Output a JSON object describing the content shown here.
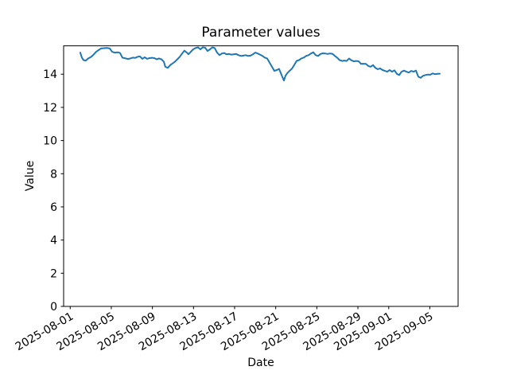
{
  "figure": {
    "background": "#ffffff"
  },
  "chart_data": {
    "type": "line",
    "title": "Parameter values",
    "xlabel": "Date",
    "ylabel": "Value",
    "x_unit": "days since 2025-08-01",
    "xlim": [
      -0.64,
      37.75
    ],
    "ylim": [
      0,
      15.71
    ],
    "grid": false,
    "legend_position": "none",
    "line_color": "#1f77b4",
    "axis_color": "#000000",
    "y_ticks": [
      0,
      2,
      4,
      6,
      8,
      10,
      12,
      14
    ],
    "x_ticks": [
      {
        "pos": 0,
        "label": "2025-08-01"
      },
      {
        "pos": 4,
        "label": "2025-08-05"
      },
      {
        "pos": 8,
        "label": "2025-08-09"
      },
      {
        "pos": 12,
        "label": "2025-08-13"
      },
      {
        "pos": 16,
        "label": "2025-08-17"
      },
      {
        "pos": 20,
        "label": "2025-08-21"
      },
      {
        "pos": 24,
        "label": "2025-08-25"
      },
      {
        "pos": 28,
        "label": "2025-08-29"
      },
      {
        "pos": 31,
        "label": "2025-09-01"
      },
      {
        "pos": 35,
        "label": "2025-09-05"
      }
    ],
    "points": [
      [
        0.98,
        15.3
      ],
      [
        1.14,
        15.0
      ],
      [
        1.29,
        14.85
      ],
      [
        1.52,
        14.82
      ],
      [
        1.76,
        14.95
      ],
      [
        1.99,
        15.03
      ],
      [
        2.22,
        15.15
      ],
      [
        2.53,
        15.36
      ],
      [
        2.76,
        15.45
      ],
      [
        3.0,
        15.55
      ],
      [
        3.3,
        15.57
      ],
      [
        3.61,
        15.58
      ],
      [
        3.85,
        15.55
      ],
      [
        4.08,
        15.35
      ],
      [
        4.31,
        15.3
      ],
      [
        4.62,
        15.32
      ],
      [
        4.85,
        15.28
      ],
      [
        5.08,
        15.0
      ],
      [
        5.39,
        14.95
      ],
      [
        5.63,
        14.92
      ],
      [
        5.86,
        14.95
      ],
      [
        6.09,
        15.0
      ],
      [
        6.32,
        14.98
      ],
      [
        6.56,
        15.05
      ],
      [
        6.79,
        15.07
      ],
      [
        7.02,
        14.93
      ],
      [
        7.25,
        15.02
      ],
      [
        7.48,
        14.93
      ],
      [
        7.72,
        14.97
      ],
      [
        7.95,
        14.99
      ],
      [
        8.18,
        14.97
      ],
      [
        8.41,
        14.9
      ],
      [
        8.64,
        14.95
      ],
      [
        8.88,
        14.9
      ],
      [
        9.11,
        14.75
      ],
      [
        9.26,
        14.45
      ],
      [
        9.5,
        14.38
      ],
      [
        9.73,
        14.55
      ],
      [
        9.96,
        14.65
      ],
      [
        10.19,
        14.75
      ],
      [
        10.43,
        14.9
      ],
      [
        10.66,
        15.05
      ],
      [
        10.89,
        15.25
      ],
      [
        11.12,
        15.42
      ],
      [
        11.35,
        15.3
      ],
      [
        11.51,
        15.2
      ],
      [
        11.74,
        15.35
      ],
      [
        11.97,
        15.5
      ],
      [
        12.21,
        15.58
      ],
      [
        12.44,
        15.62
      ],
      [
        12.67,
        15.5
      ],
      [
        12.9,
        15.62
      ],
      [
        13.13,
        15.6
      ],
      [
        13.37,
        15.4
      ],
      [
        13.6,
        15.5
      ],
      [
        13.83,
        15.62
      ],
      [
        14.06,
        15.58
      ],
      [
        14.29,
        15.3
      ],
      [
        14.53,
        15.15
      ],
      [
        14.76,
        15.25
      ],
      [
        14.99,
        15.28
      ],
      [
        15.22,
        15.2
      ],
      [
        15.46,
        15.22
      ],
      [
        15.69,
        15.18
      ],
      [
        15.92,
        15.2
      ],
      [
        16.15,
        15.22
      ],
      [
        16.38,
        15.15
      ],
      [
        16.62,
        15.1
      ],
      [
        16.85,
        15.12
      ],
      [
        17.08,
        15.15
      ],
      [
        17.31,
        15.1
      ],
      [
        17.55,
        15.12
      ],
      [
        17.78,
        15.2
      ],
      [
        18.01,
        15.3
      ],
      [
        18.24,
        15.25
      ],
      [
        18.47,
        15.18
      ],
      [
        18.71,
        15.1
      ],
      [
        18.94,
        15.0
      ],
      [
        19.17,
        14.95
      ],
      [
        19.4,
        14.7
      ],
      [
        19.64,
        14.45
      ],
      [
        19.87,
        14.2
      ],
      [
        20.1,
        14.25
      ],
      [
        20.33,
        14.32
      ],
      [
        20.49,
        14.08
      ],
      [
        20.64,
        13.85
      ],
      [
        20.8,
        13.62
      ],
      [
        20.95,
        13.9
      ],
      [
        21.11,
        14.05
      ],
      [
        21.34,
        14.2
      ],
      [
        21.57,
        14.33
      ],
      [
        21.8,
        14.55
      ],
      [
        22.03,
        14.8
      ],
      [
        22.27,
        14.85
      ],
      [
        22.5,
        14.95
      ],
      [
        22.73,
        15.0
      ],
      [
        22.96,
        15.1
      ],
      [
        23.2,
        15.15
      ],
      [
        23.43,
        15.25
      ],
      [
        23.66,
        15.32
      ],
      [
        23.89,
        15.15
      ],
      [
        24.13,
        15.1
      ],
      [
        24.36,
        15.22
      ],
      [
        24.59,
        15.26
      ],
      [
        24.82,
        15.25
      ],
      [
        25.05,
        15.22
      ],
      [
        25.29,
        15.25
      ],
      [
        25.52,
        15.23
      ],
      [
        25.75,
        15.1
      ],
      [
        25.98,
        15.0
      ],
      [
        26.22,
        14.85
      ],
      [
        26.45,
        14.8
      ],
      [
        26.68,
        14.82
      ],
      [
        26.91,
        14.8
      ],
      [
        27.14,
        14.94
      ],
      [
        27.38,
        14.83
      ],
      [
        27.61,
        14.78
      ],
      [
        27.84,
        14.8
      ],
      [
        28.07,
        14.78
      ],
      [
        28.31,
        14.62
      ],
      [
        28.54,
        14.63
      ],
      [
        28.77,
        14.62
      ],
      [
        29.0,
        14.5
      ],
      [
        29.23,
        14.45
      ],
      [
        29.47,
        14.55
      ],
      [
        29.7,
        14.38
      ],
      [
        29.93,
        14.3
      ],
      [
        30.16,
        14.35
      ],
      [
        30.4,
        14.25
      ],
      [
        30.63,
        14.2
      ],
      [
        30.86,
        14.15
      ],
      [
        31.09,
        14.25
      ],
      [
        31.32,
        14.15
      ],
      [
        31.56,
        14.23
      ],
      [
        31.79,
        14.02
      ],
      [
        32.02,
        13.95
      ],
      [
        32.25,
        14.15
      ],
      [
        32.49,
        14.22
      ],
      [
        32.72,
        14.15
      ],
      [
        32.95,
        14.1
      ],
      [
        33.18,
        14.2
      ],
      [
        33.41,
        14.15
      ],
      [
        33.65,
        14.22
      ],
      [
        33.88,
        13.85
      ],
      [
        34.11,
        13.78
      ],
      [
        34.34,
        13.9
      ],
      [
        34.57,
        13.95
      ],
      [
        34.81,
        13.98
      ],
      [
        35.04,
        13.97
      ],
      [
        35.27,
        14.05
      ],
      [
        35.5,
        14.0
      ],
      [
        35.74,
        14.02
      ],
      [
        35.97,
        14.03
      ]
    ]
  }
}
